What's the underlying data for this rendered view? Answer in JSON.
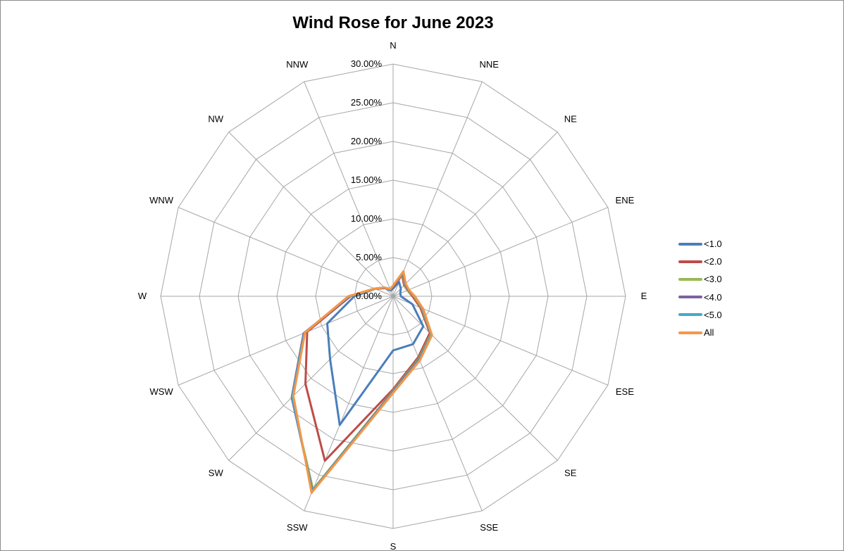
{
  "chart_data": {
    "type": "radar",
    "title": "Wind Rose for June 2023",
    "directions": [
      "N",
      "NNE",
      "NE",
      "ENE",
      "E",
      "ESE",
      "SE",
      "SSE",
      "S",
      "SSW",
      "SW",
      "WSW",
      "W",
      "WNW",
      "NW",
      "NNW"
    ],
    "radial_axis": {
      "min": 0,
      "max": 30,
      "step": 5,
      "tick_labels": [
        "0.00%",
        "5.00%",
        "10.00%",
        "15.00%",
        "20.00%",
        "25.00%",
        "30.00%"
      ]
    },
    "grid": true,
    "legend_position": "right",
    "series": [
      {
        "name": "<1.0",
        "color": "#4A7EBB",
        "values": [
          1.0,
          2.0,
          1.4,
          1.0,
          1.0,
          2.7,
          5.5,
          6.7,
          7.0,
          18.0,
          11.5,
          9.2,
          5.0,
          2.5,
          1.5,
          0.8
        ]
      },
      {
        "name": "<2.0",
        "color": "#BE4B48",
        "values": [
          1.2,
          3.0,
          2.0,
          2.0,
          2.5,
          3.8,
          6.7,
          8.5,
          12.0,
          23.0,
          16.0,
          12.0,
          5.5,
          2.5,
          1.5,
          1.0
        ]
      },
      {
        "name": "<3.0",
        "color": "#98B954",
        "values": [
          1.3,
          3.2,
          2.1,
          2.0,
          2.7,
          4.0,
          6.9,
          8.7,
          12.2,
          27.0,
          18.5,
          12.5,
          5.6,
          2.5,
          1.6,
          1.0
        ]
      },
      {
        "name": "<4.0",
        "color": "#7D60A0",
        "values": [
          1.3,
          3.3,
          2.2,
          2.1,
          2.8,
          4.1,
          7.0,
          8.8,
          12.3,
          27.2,
          18.5,
          12.5,
          5.6,
          2.6,
          1.6,
          1.0
        ]
      },
      {
        "name": "<5.0",
        "color": "#46AAC5",
        "values": [
          1.4,
          3.4,
          2.3,
          2.2,
          2.8,
          4.1,
          7.0,
          8.9,
          12.4,
          27.3,
          18.4,
          12.4,
          5.7,
          2.6,
          1.6,
          1.0
        ]
      },
      {
        "name": "All",
        "color": "#F79646",
        "values": [
          1.4,
          3.5,
          2.3,
          2.2,
          2.8,
          4.2,
          7.1,
          9.0,
          12.5,
          27.5,
          18.2,
          12.3,
          5.8,
          2.6,
          1.6,
          1.0
        ]
      }
    ]
  }
}
